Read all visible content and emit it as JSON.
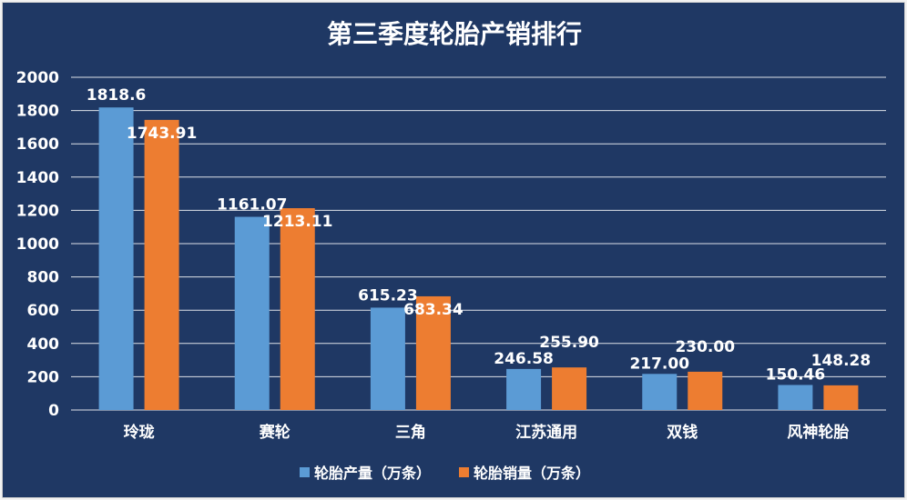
{
  "chart_data": {
    "type": "bar",
    "title": "第三季度轮胎产销排行",
    "categories": [
      "玲珑",
      "赛轮",
      "三角",
      "江苏通用",
      "双钱",
      "风神轮胎"
    ],
    "series": [
      {
        "name": "轮胎产量（万条）",
        "color": "#5b9bd5",
        "values": [
          1818.6,
          1161.07,
          615.23,
          246.58,
          217.0,
          150.46
        ],
        "labels": [
          "1818.6",
          "1161.07",
          "615.23",
          "246.58",
          "217.00",
          "150.46"
        ]
      },
      {
        "name": "轮胎销量（万条）",
        "color": "#ed7d31",
        "values": [
          1743.91,
          1213.11,
          683.34,
          255.9,
          230.0,
          148.28
        ],
        "labels": [
          "1743.91",
          "1213.11",
          "683.34",
          "255.90",
          "230.00",
          "148.28"
        ]
      }
    ],
    "ylim": [
      0,
      2000
    ],
    "yticks": [
      "0",
      "200",
      "400",
      "600",
      "800",
      "1000",
      "1200",
      "1400",
      "1600",
      "1800",
      "2000"
    ],
    "xlabel": "",
    "ylabel": "",
    "grid": true,
    "legend": "bottom-center"
  },
  "colors": {
    "background": "#1f3864",
    "text": "#ffffff",
    "gridline": "#ffffff"
  }
}
